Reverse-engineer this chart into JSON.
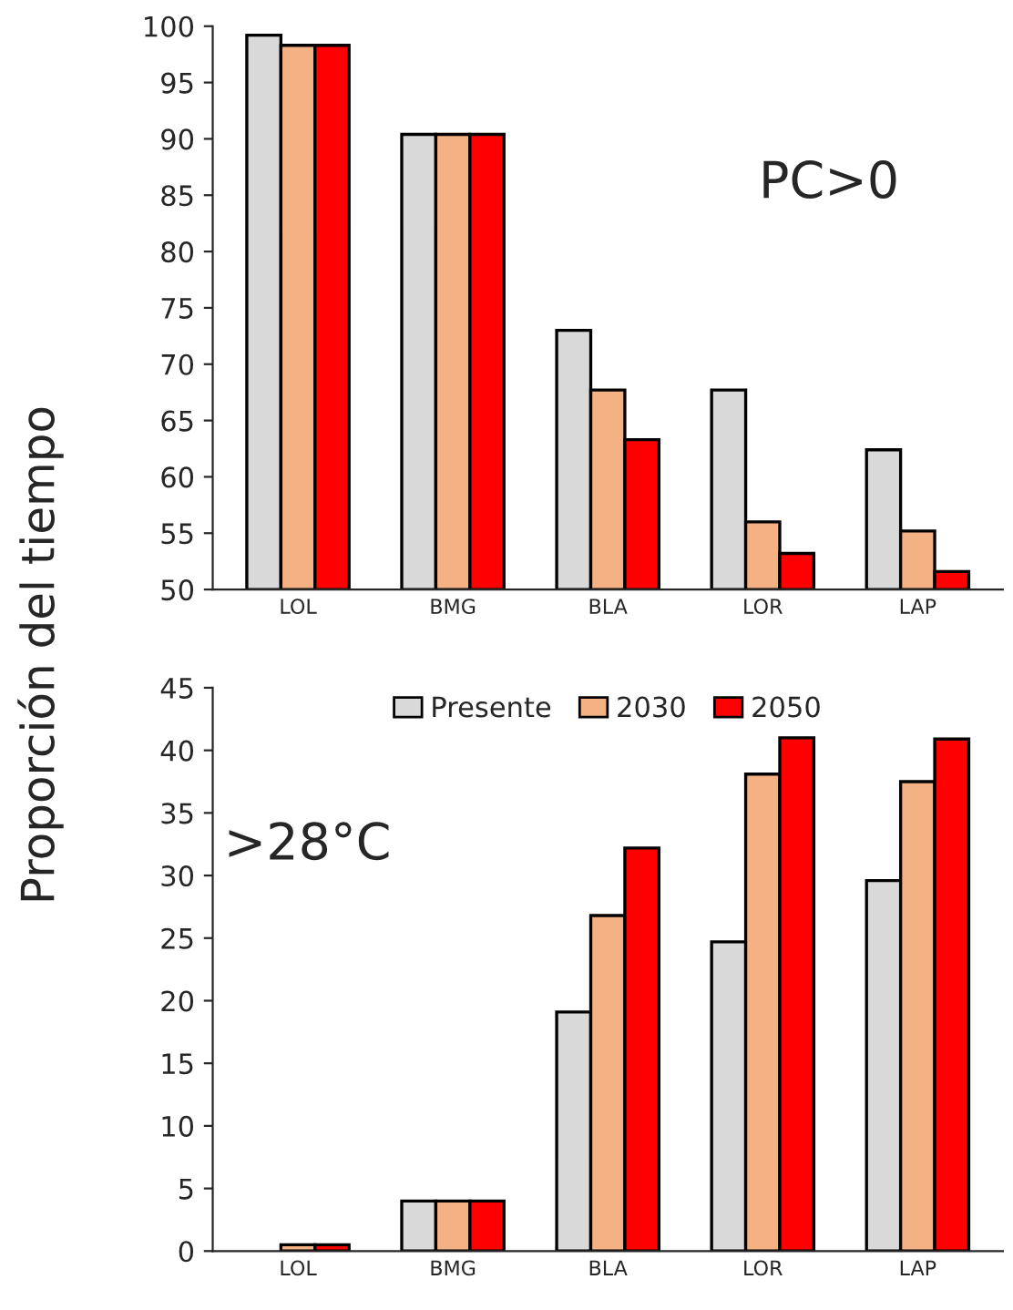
{
  "chart_data": [
    {
      "type": "bar",
      "ylabel": "Proporción del tiempo",
      "categories": [
        "LOL",
        "BMG",
        "BLA",
        "LOR",
        "LAP"
      ],
      "ylim": [
        50,
        100
      ],
      "yticks": [
        50,
        55,
        60,
        65,
        70,
        75,
        80,
        85,
        90,
        95,
        100
      ],
      "annotations": [
        "PC>0"
      ],
      "grid": false,
      "series": [
        {
          "color": "#d9d9d9",
          "values": [
            99.2,
            90.4,
            73.0,
            67.7,
            62.4
          ]
        },
        {
          "color": "#f4b183",
          "values": [
            98.3,
            90.4,
            67.7,
            56.0,
            55.2
          ]
        },
        {
          "color": "#ff0000",
          "values": [
            98.3,
            90.4,
            63.3,
            53.2,
            51.6
          ]
        }
      ]
    },
    {
      "type": "bar",
      "categories": [
        "LOL",
        "BMG",
        "BLA",
        "LOR",
        "LAP"
      ],
      "ylim": [
        0,
        45
      ],
      "yticks": [
        0,
        5,
        10,
        15,
        20,
        25,
        30,
        35,
        40,
        45
      ],
      "annotations": [
        ">28°C"
      ],
      "grid": false,
      "legend": "top",
      "series": [
        {
          "name": "Presente",
          "color": "#d9d9d9",
          "values": [
            null,
            4.0,
            19.1,
            24.7,
            29.6
          ]
        },
        {
          "name": "2030",
          "color": "#f4b183",
          "values": [
            0.5,
            4.0,
            26.8,
            38.1,
            37.5
          ]
        },
        {
          "name": "2050",
          "color": "#ff0000",
          "values": [
            0.5,
            4.0,
            32.2,
            41.0,
            40.9
          ]
        }
      ]
    }
  ]
}
